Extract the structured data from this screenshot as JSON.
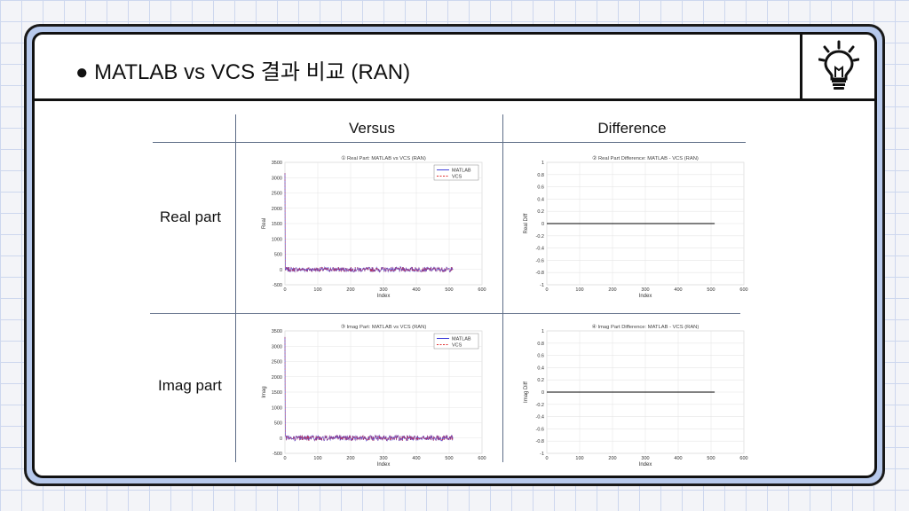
{
  "slide": {
    "title": "● MATLAB vs VCS 결과 비교 (RAN)",
    "icon": "lightbulb-icon"
  },
  "table": {
    "col_headers": [
      "Versus",
      "Difference"
    ],
    "row_headers": [
      "Real part",
      "Imag part"
    ]
  },
  "colors": {
    "matlab": "#2b2bd6",
    "vcs": "#e03030",
    "diff_line": "#000000",
    "grid": "#e6e6e6",
    "background_grid": "#cdd7ee",
    "frame": "#b7c9ec"
  },
  "chart_data": [
    {
      "type": "line",
      "title": "① Real Part: MATLAB vs VCS (RAN)",
      "xlabel": "Index",
      "ylabel": "Real",
      "xlim": [
        0,
        600
      ],
      "ylim": [
        -500,
        3500
      ],
      "xticks": [
        0,
        100,
        200,
        300,
        400,
        500,
        600
      ],
      "yticks": [
        -500,
        0,
        500,
        1000,
        1500,
        2000,
        2500,
        3000,
        3500
      ],
      "grid": true,
      "legend": "top-right",
      "n_points": 512,
      "series": [
        {
          "name": "MATLAB",
          "style": "solid",
          "color": "#2b2bd6",
          "spike_at_0": 3150,
          "noise_amplitude": 80
        },
        {
          "name": "VCS",
          "style": "dashed",
          "color": "#e03030",
          "spike_at_0": 3150,
          "noise_amplitude": 80
        }
      ]
    },
    {
      "type": "line",
      "title": "② Real Part Difference: MATLAB - VCS (RAN)",
      "xlabel": "Index",
      "ylabel": "Real Diff",
      "xlim": [
        0,
        600
      ],
      "ylim": [
        -1,
        1
      ],
      "xticks": [
        0,
        100,
        200,
        300,
        400,
        500,
        600
      ],
      "yticks": [
        -1,
        -0.8,
        -0.6,
        -0.4,
        -0.2,
        0,
        0.2,
        0.4,
        0.6,
        0.8,
        1
      ],
      "grid": true,
      "series": [
        {
          "x": [
            0,
            511
          ],
          "y": [
            0,
            0
          ],
          "color": "#000000"
        }
      ]
    },
    {
      "type": "line",
      "title": "③ Imag Part: MATLAB vs VCS (RAN)",
      "xlabel": "Index",
      "ylabel": "Imag",
      "xlim": [
        0,
        600
      ],
      "ylim": [
        -500,
        3500
      ],
      "xticks": [
        0,
        100,
        200,
        300,
        400,
        500,
        600
      ],
      "yticks": [
        -500,
        0,
        500,
        1000,
        1500,
        2000,
        2500,
        3000,
        3500
      ],
      "grid": true,
      "legend": "top-right",
      "n_points": 512,
      "series": [
        {
          "name": "MATLAB",
          "style": "solid",
          "color": "#2b2bd6",
          "spike_at_0": 3300,
          "noise_amplitude": 90
        },
        {
          "name": "VCS",
          "style": "dashed",
          "color": "#e03030",
          "spike_at_0": 3300,
          "noise_amplitude": 90
        }
      ]
    },
    {
      "type": "line",
      "title": "④ Imag Part Difference: MATLAB - VCS (RAN)",
      "xlabel": "Index",
      "ylabel": "Imag Diff",
      "xlim": [
        0,
        600
      ],
      "ylim": [
        -1,
        1
      ],
      "xticks": [
        0,
        100,
        200,
        300,
        400,
        500,
        600
      ],
      "yticks": [
        -1,
        -0.8,
        -0.6,
        -0.4,
        -0.2,
        0,
        0.2,
        0.4,
        0.6,
        0.8,
        1
      ],
      "grid": true,
      "series": [
        {
          "x": [
            0,
            511
          ],
          "y": [
            0,
            0
          ],
          "color": "#000000"
        }
      ]
    }
  ]
}
